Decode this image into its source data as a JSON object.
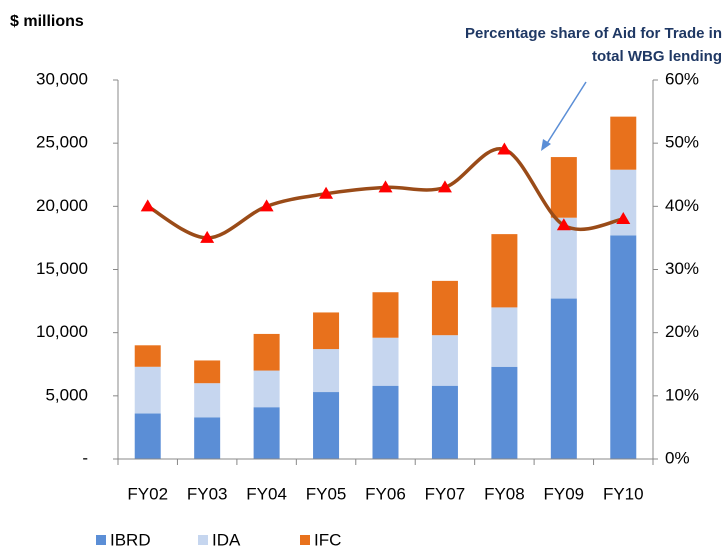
{
  "chart_data": {
    "type": "bar_line",
    "y_axis_title": "$ millions",
    "annotation": [
      "Percentage share of Aid for Trade in",
      "total WBG lending"
    ],
    "categories": [
      "FY02",
      "FY03",
      "FY04",
      "FY05",
      "FY06",
      "FY07",
      "FY08",
      "FY09",
      "FY10"
    ],
    "series": [
      {
        "name": "IBRD",
        "color": "#5b8ed6",
        "stacked": true,
        "values": [
          3600,
          3300,
          4100,
          5300,
          5800,
          5800,
          7300,
          12700,
          17700
        ]
      },
      {
        "name": "IDA",
        "color": "#c6d6ef",
        "stacked": true,
        "values": [
          3700,
          2700,
          2900,
          3400,
          3800,
          4000,
          4700,
          6400,
          5200
        ]
      },
      {
        "name": "IFC",
        "color": "#e8711c",
        "stacked": true,
        "values": [
          1700,
          1800,
          2900,
          2900,
          3600,
          4300,
          5800,
          4800,
          4200
        ]
      },
      {
        "axis": "y2",
        "kind": "line",
        "color": "#9a4b18",
        "marker_color": "#ff0000",
        "values": [
          40,
          35,
          40,
          42,
          43,
          43,
          49,
          37,
          38
        ]
      }
    ],
    "ylim": [
      0,
      30000
    ],
    "yticks": [
      {
        "value": 0,
        "label": "-"
      },
      {
        "value": 5000,
        "label": "5,000"
      },
      {
        "value": 10000,
        "label": "10,000"
      },
      {
        "value": 15000,
        "label": "15,000"
      },
      {
        "value": 20000,
        "label": "20,000"
      },
      {
        "value": 25000,
        "label": "25,000"
      },
      {
        "value": 30000,
        "label": "30,000"
      }
    ],
    "y2lim": [
      0,
      60
    ],
    "y2ticks": [
      {
        "value": 0,
        "label": "0%"
      },
      {
        "value": 10,
        "label": "10%"
      },
      {
        "value": 20,
        "label": "20%"
      },
      {
        "value": 30,
        "label": "30%"
      },
      {
        "value": 40,
        "label": "40%"
      },
      {
        "value": 50,
        "label": "50%"
      },
      {
        "value": 60,
        "label": "60%"
      }
    ],
    "legend": "bottom"
  }
}
